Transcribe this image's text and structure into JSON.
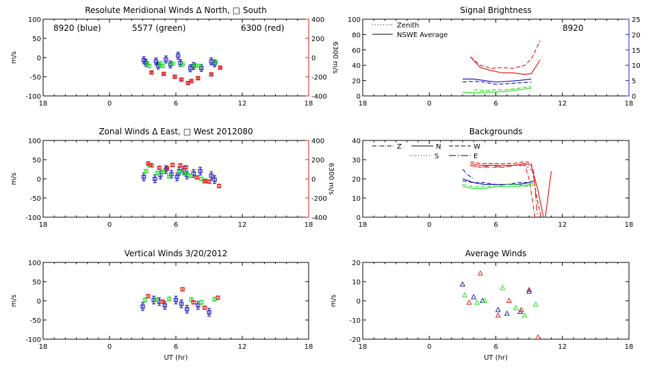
{
  "colors": {
    "blue": "#1c1cb4",
    "green": "#22e022",
    "red": "#dc1e1e",
    "black": "#000000"
  },
  "chart_data": [
    {
      "id": "meridional",
      "type": "scatter",
      "title": "Resolute Meridional Winds Δ North, □ South",
      "ylabel": "m/s",
      "y2label": "6300 m/s",
      "xlim": [
        18,
        42
      ],
      "xticks": [
        "18",
        "0",
        "6",
        "12",
        "18"
      ],
      "ylim": [
        -100,
        100
      ],
      "yticks": [
        "100",
        "50",
        "0",
        "-50",
        "-100"
      ],
      "y2lim": [
        -400,
        400
      ],
      "y2ticks": [
        "400",
        "200",
        "0",
        "-200",
        "-400"
      ],
      "notes": [
        {
          "text": "8920 (blue)",
          "color": "blue"
        },
        {
          "text": "5577 (green)",
          "color": "green"
        },
        {
          "text": "6300 (red)",
          "color": "red"
        }
      ],
      "series": [
        {
          "color": "blue",
          "axis": "left",
          "err": 9,
          "points": [
            [
              27.1,
              -7
            ],
            [
              27.3,
              -14
            ],
            [
              28.2,
              -10
            ],
            [
              28.4,
              -21
            ],
            [
              29.1,
              -5
            ],
            [
              29.5,
              -18
            ],
            [
              30.2,
              5
            ],
            [
              30.4,
              -14
            ],
            [
              31.3,
              -28
            ],
            [
              31.6,
              -22
            ],
            [
              32.3,
              -27
            ],
            [
              33.2,
              -10
            ],
            [
              33.5,
              -15
            ]
          ]
        },
        {
          "color": "green",
          "axis": "left",
          "err": 4,
          "points": [
            [
              27.4,
              -16
            ],
            [
              27.6,
              -22
            ],
            [
              28.6,
              -15
            ],
            [
              28.8,
              -22
            ],
            [
              29.7,
              -16
            ],
            [
              30.6,
              -18
            ],
            [
              31.7,
              -20
            ],
            [
              32.1,
              -22
            ],
            [
              33.6,
              -12
            ]
          ]
        },
        {
          "color": "red",
          "axis": "right",
          "err": 8,
          "points": [
            [
              27.8,
              -155
            ],
            [
              28.9,
              -170
            ],
            [
              29.9,
              -200
            ],
            [
              30.5,
              -230
            ],
            [
              31.1,
              -265
            ],
            [
              31.4,
              -245
            ],
            [
              32.0,
              -215
            ],
            [
              33.2,
              -175
            ],
            [
              34.0,
              -105
            ]
          ]
        }
      ]
    },
    {
      "id": "signal",
      "type": "line",
      "title": "Signal Brightness",
      "xlim": [
        18,
        42
      ],
      "xticks": [
        "18",
        "0",
        "6",
        "12",
        "18"
      ],
      "ylim": [
        0,
        100
      ],
      "yticks": [
        "100",
        "80",
        "60",
        "40",
        "20",
        "0"
      ],
      "y2lim": [
        0,
        25
      ],
      "y2ticks": [
        "25",
        "20",
        "15",
        "10",
        "5",
        "0"
      ],
      "legend": [
        {
          "label": "Zenith",
          "dash": "1,3"
        },
        {
          "label": "NSWE Average",
          "dash": ""
        }
      ],
      "station": "8920",
      "series": [
        {
          "color": "red",
          "dash": "",
          "x": [
            27.7,
            28.6,
            29.6,
            30.6,
            31.6,
            32.6,
            33.2,
            34.0
          ],
          "y": [
            51,
            37,
            33,
            30,
            30,
            28,
            29,
            47
          ]
        },
        {
          "color": "red",
          "dash": "6,3",
          "x": [
            27.7,
            28.6,
            29.6,
            30.6,
            31.6,
            32.6,
            33.2,
            34.0
          ],
          "y": [
            51,
            40,
            36,
            37,
            36,
            40,
            48,
            72
          ]
        },
        {
          "color": "blue",
          "dash": "",
          "x": [
            27.0,
            28.0,
            29.0,
            30.0,
            31.0,
            32.0,
            33.2
          ],
          "y": [
            22,
            22,
            20,
            18,
            19,
            20,
            22
          ]
        },
        {
          "color": "blue",
          "dash": "6,3",
          "x": [
            27.0,
            28.0,
            29.0,
            30.0,
            31.0,
            32.0,
            33.2
          ],
          "y": [
            18,
            19,
            18,
            15,
            16,
            17,
            18
          ]
        },
        {
          "color": "green",
          "dash": "",
          "x": [
            27.0,
            28.0,
            29.0,
            30.0,
            31.0,
            32.0,
            33.2
          ],
          "y": [
            5,
            4,
            5,
            5,
            6,
            8,
            10
          ]
        },
        {
          "color": "green",
          "dash": "6,3",
          "x": [
            28.0,
            29.0,
            30.0,
            31.0,
            32.0,
            33.2
          ],
          "y": [
            8,
            7,
            8,
            8,
            10,
            12
          ]
        }
      ]
    },
    {
      "id": "zonal",
      "type": "scatter",
      "title": "Zonal Winds Δ East, □ West 2012080",
      "ylabel": "m/s",
      "y2label": "6300 m/s",
      "xlim": [
        18,
        42
      ],
      "xticks": [
        "18",
        "0",
        "6",
        "12",
        "18"
      ],
      "ylim": [
        -100,
        100
      ],
      "yticks": [
        "100",
        "50",
        "0",
        "-50",
        "-100"
      ],
      "y2lim": [
        -400,
        400
      ],
      "y2ticks": [
        "400",
        "200",
        "0",
        "-200",
        "-400"
      ],
      "series": [
        {
          "color": "blue",
          "axis": "left",
          "err": 10,
          "points": [
            [
              27.1,
              5
            ],
            [
              28.1,
              0
            ],
            [
              28.6,
              10
            ],
            [
              29.1,
              24
            ],
            [
              29.6,
              12
            ],
            [
              30.1,
              5
            ],
            [
              30.3,
              20
            ],
            [
              30.7,
              22
            ],
            [
              31.0,
              10
            ],
            [
              31.6,
              14
            ],
            [
              32.2,
              20
            ],
            [
              33.2,
              8
            ],
            [
              33.5,
              -2
            ]
          ]
        },
        {
          "color": "green",
          "axis": "left",
          "err": 4,
          "points": [
            [
              27.3,
              20
            ],
            [
              27.6,
              35
            ],
            [
              28.3,
              15
            ],
            [
              28.8,
              18
            ],
            [
              29.4,
              6
            ],
            [
              30.3,
              18
            ],
            [
              30.8,
              14
            ],
            [
              31.3,
              8
            ],
            [
              32.3,
              0
            ],
            [
              32.7,
              -5
            ]
          ]
        },
        {
          "color": "red",
          "axis": "right",
          "err": 14,
          "points": [
            [
              27.5,
              160
            ],
            [
              27.8,
              140
            ],
            [
              28.5,
              115
            ],
            [
              29.2,
              110
            ],
            [
              29.7,
              145
            ],
            [
              30.4,
              140
            ],
            [
              30.9,
              120
            ],
            [
              31.9,
              15
            ],
            [
              32.6,
              -25
            ],
            [
              33.0,
              -30
            ],
            [
              33.9,
              -75
            ]
          ]
        }
      ]
    },
    {
      "id": "backgrounds",
      "type": "line",
      "title": "Backgrounds",
      "xlim": [
        18,
        42
      ],
      "xticks": [
        "18",
        "0",
        "6",
        "12",
        "18"
      ],
      "ylim": [
        0,
        40
      ],
      "yticks": [
        "40",
        "30",
        "20",
        "10",
        "0"
      ],
      "legend": [
        {
          "label": "Z",
          "dash": "6,2,1,2"
        },
        {
          "label": "N",
          "dash": ""
        },
        {
          "label": "W",
          "dash": "6,3"
        },
        {
          "label": "S",
          "dash": "1,3"
        },
        {
          "label": "E",
          "dash": "10,3,2,3"
        }
      ],
      "series": [
        {
          "color": "red",
          "dash": "",
          "x": [
            27.7,
            28.6,
            29.6,
            30.6,
            31.6,
            32.6,
            33.2,
            33.8,
            34.4,
            35.0
          ],
          "y": [
            28,
            27,
            27,
            27,
            27,
            28,
            27,
            14,
            -3,
            24
          ]
        },
        {
          "color": "red",
          "dash": "6,3",
          "x": [
            27.7,
            28.6,
            29.6,
            30.6,
            31.6,
            32.6,
            33.2,
            33.7,
            34.2
          ],
          "y": [
            29,
            28,
            28,
            28,
            28,
            29,
            28,
            10,
            -3
          ]
        },
        {
          "color": "red",
          "dash": "10,3,2,3",
          "x": [
            27.7,
            28.6,
            29.6,
            30.6,
            31.6,
            32.6,
            33.4,
            33.8
          ],
          "y": [
            27,
            26,
            27,
            26,
            27,
            27,
            24,
            -3
          ]
        },
        {
          "color": "red",
          "dash": "6,2,1,2",
          "x": [
            27.7,
            28.6,
            29.6,
            30.6,
            31.6,
            32.6,
            33.0,
            33.6
          ],
          "y": [
            27,
            26,
            26,
            26,
            27,
            28,
            20,
            -3
          ]
        },
        {
          "color": "blue",
          "dash": "",
          "x": [
            27.0,
            28.0,
            29.0,
            30.0,
            31.0,
            32.0,
            33.0,
            33.4
          ],
          "y": [
            20,
            18,
            17,
            17,
            17,
            17,
            18,
            19
          ]
        },
        {
          "color": "blue",
          "dash": "6,3",
          "x": [
            27.0,
            28.0,
            29.0,
            30.0,
            31.0,
            32.0,
            33.0,
            33.4
          ],
          "y": [
            19,
            18,
            18,
            17,
            17,
            18,
            18,
            19
          ]
        },
        {
          "color": "blue",
          "dash": "6,2,1,2",
          "x": [
            27.0,
            27.5,
            28.0
          ],
          "y": [
            25,
            22,
            20
          ]
        },
        {
          "color": "green",
          "dash": "",
          "x": [
            27.0,
            28.0,
            29.0,
            30.0,
            31.0,
            32.0,
            33.0,
            33.4
          ],
          "y": [
            16,
            15,
            15,
            16,
            16,
            16,
            17,
            18
          ]
        },
        {
          "color": "green",
          "dash": "6,3",
          "x": [
            27.0,
            28.0,
            29.0,
            30.0,
            31.0,
            32.0,
            33.0,
            33.4
          ],
          "y": [
            17,
            16,
            16,
            16,
            17,
            17,
            16,
            17
          ]
        }
      ]
    },
    {
      "id": "vertical",
      "type": "scatter",
      "title": "Vertical Winds 3/20/2012",
      "ylabel": "m/s",
      "xlabel": "UT (hr)",
      "xlim": [
        18,
        42
      ],
      "xticks": [
        "18",
        "0",
        "6",
        "12",
        "18"
      ],
      "ylim": [
        -100,
        100
      ],
      "yticks": [
        "100",
        "50",
        "0",
        "-50",
        "-100"
      ],
      "series": [
        {
          "color": "blue",
          "axis": "left",
          "err": 10,
          "points": [
            [
              27.0,
              -15
            ],
            [
              28.0,
              2
            ],
            [
              28.5,
              -2
            ],
            [
              29.0,
              -12
            ],
            [
              30.0,
              2
            ],
            [
              30.5,
              -8
            ],
            [
              31.0,
              -22
            ],
            [
              32.0,
              -12
            ],
            [
              33.0,
              -30
            ]
          ]
        },
        {
          "color": "green",
          "axis": "left",
          "err": 5,
          "points": [
            [
              27.2,
              2
            ],
            [
              28.2,
              3
            ],
            [
              29.4,
              5
            ],
            [
              31.4,
              3
            ],
            [
              32.3,
              -4
            ],
            [
              33.5,
              4
            ]
          ]
        },
        {
          "color": "red",
          "axis": "left",
          "err": 4,
          "points": [
            [
              27.5,
              12
            ],
            [
              28.8,
              -2
            ],
            [
              30.6,
              30
            ],
            [
              31.6,
              -4
            ],
            [
              32.6,
              -18
            ],
            [
              33.8,
              8
            ]
          ]
        }
      ]
    },
    {
      "id": "average",
      "type": "scatter",
      "title": "Average Winds",
      "ylabel": "m/s",
      "xlabel": "UT (hr)",
      "xlim": [
        18,
        42
      ],
      "xticks": [
        "18",
        "0",
        "6",
        "12",
        "18"
      ],
      "ylim": [
        -21,
        21
      ],
      "yticks": [
        "20",
        "10",
        "0",
        "-10",
        "-20"
      ],
      "series": [
        {
          "color": "blue",
          "axis": "left",
          "err": 0,
          "marker": "triangle",
          "points": [
            [
              27.0,
              9
            ],
            [
              28.0,
              2
            ],
            [
              28.8,
              0
            ],
            [
              30.2,
              -5
            ],
            [
              31.0,
              -7
            ],
            [
              32.2,
              -6
            ],
            [
              33.0,
              5
            ]
          ]
        },
        {
          "color": "green",
          "axis": "left",
          "err": 0,
          "marker": "triangle",
          "points": [
            [
              27.2,
              3
            ],
            [
              28.3,
              -1
            ],
            [
              29.0,
              0
            ],
            [
              30.6,
              7
            ],
            [
              31.8,
              -4
            ],
            [
              32.6,
              -8
            ],
            [
              33.6,
              -2
            ]
          ]
        },
        {
          "color": "red",
          "axis": "left",
          "err": 0,
          "marker": "triangle",
          "points": [
            [
              27.6,
              -1
            ],
            [
              28.6,
              15
            ],
            [
              30.2,
              -8
            ],
            [
              31.2,
              0
            ],
            [
              32.3,
              -5
            ],
            [
              33.0,
              6
            ],
            [
              33.8,
              -20
            ]
          ]
        }
      ]
    }
  ]
}
